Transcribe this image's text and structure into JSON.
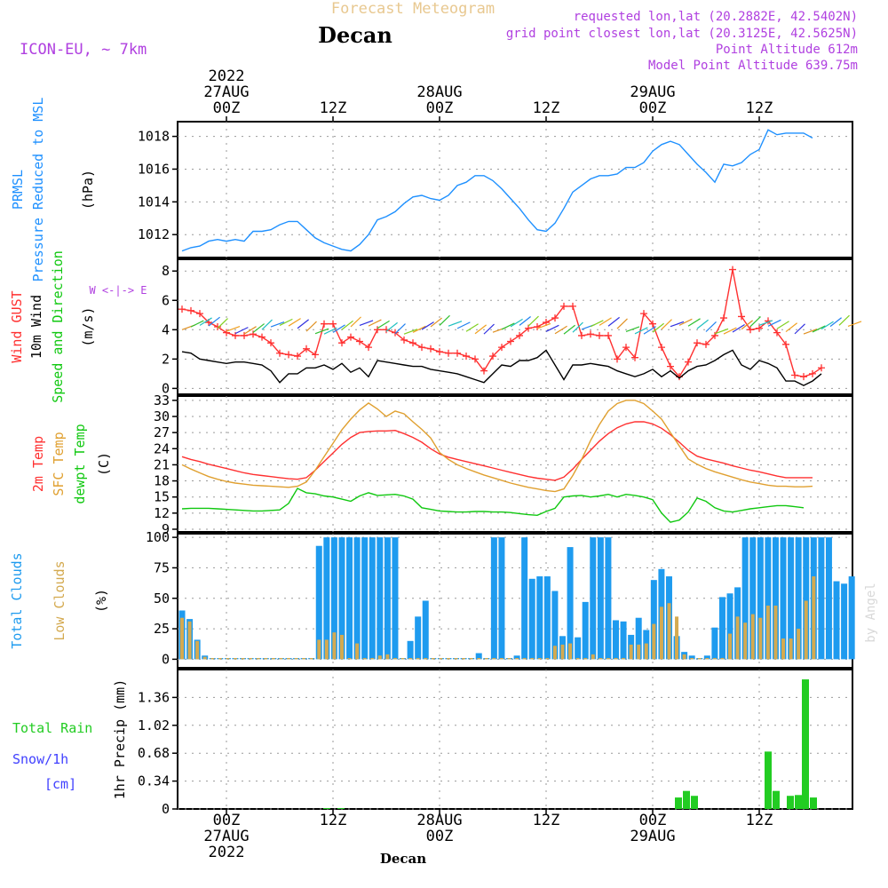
{
  "header": {
    "subtitle": "Forecast Meteogram",
    "location": "Decan",
    "model": "ICON-EU, ~ 7km",
    "requested": "requested lon,lat (20.2882E, 42.5402N)",
    "gridpoint": "grid point closest lon,lat (20.3125E, 42.5625N)",
    "point_alt": "Point Altitude 612m",
    "model_alt": "Model Point Altitude 639.75m",
    "footer": "Decan",
    "credit": "by Angel"
  },
  "colors": {
    "prmsl": "#1e90ff",
    "gust": "#ff3030",
    "wind": "#000000",
    "temp": "#ff3030",
    "sfc": "#e0a030",
    "dewpt": "#10c810",
    "total_clouds": "#1e9bef",
    "low_clouds": "#d4aa50",
    "rain": "#22cc22",
    "snow": "#4040ff",
    "purple": "#b040e0"
  },
  "time_axis": {
    "top_labels": [
      {
        "h": 0,
        "lines": [
          "2022",
          "27AUG",
          "00Z"
        ]
      },
      {
        "h": 12,
        "lines": [
          "12Z"
        ]
      },
      {
        "h": 24,
        "lines": [
          "28AUG",
          "00Z"
        ]
      },
      {
        "h": 36,
        "lines": [
          "12Z"
        ]
      },
      {
        "h": 48,
        "lines": [
          "29AUG",
          "00Z"
        ]
      },
      {
        "h": 60,
        "lines": [
          "12Z"
        ]
      }
    ],
    "bottom_labels": [
      {
        "h": 0,
        "lines": [
          "00Z",
          "27AUG",
          "2022"
        ]
      },
      {
        "h": 12,
        "lines": [
          "12Z"
        ]
      },
      {
        "h": 24,
        "lines": [
          "28AUG",
          "00Z"
        ]
      },
      {
        "h": 36,
        "lines": [
          "12Z"
        ]
      },
      {
        "h": 48,
        "lines": [
          "00Z",
          "29AUG"
        ]
      },
      {
        "h": 60,
        "lines": [
          "12Z"
        ]
      }
    ],
    "range_hours": [
      -5.5,
      70.5
    ]
  },
  "chart_data": [
    {
      "type": "line",
      "panel": "pressure",
      "ylabel_lines": [
        "PRMSL",
        "Pressure Reduced to MSL"
      ],
      "unit": "(hPa)",
      "yticks": [
        1012,
        1014,
        1016,
        1018
      ],
      "ylim": [
        1010.6,
        1018.9
      ],
      "grid": true,
      "series": [
        {
          "name": "PRMSL",
          "x_start_hour": -5,
          "values": [
            1011.0,
            1011.2,
            1011.3,
            1011.6,
            1011.7,
            1011.6,
            1011.7,
            1011.6,
            1012.2,
            1012.2,
            1012.3,
            1012.6,
            1012.8,
            1012.8,
            1012.3,
            1011.8,
            1011.5,
            1011.3,
            1011.1,
            1011.0,
            1011.4,
            1012.0,
            1012.9,
            1013.1,
            1013.4,
            1013.9,
            1014.3,
            1014.4,
            1014.2,
            1014.1,
            1014.4,
            1015.0,
            1015.2,
            1015.6,
            1015.6,
            1015.3,
            1014.8,
            1014.2,
            1013.6,
            1012.9,
            1012.3,
            1012.2,
            1012.7,
            1013.6,
            1014.6,
            1015.0,
            1015.4,
            1015.6,
            1015.6,
            1015.7,
            1016.1,
            1016.1,
            1016.4,
            1017.1,
            1017.5,
            1017.7,
            1017.5,
            1016.9,
            1016.3,
            1015.8,
            1015.2,
            1016.3,
            1016.2,
            1016.4,
            1016.9,
            1017.2,
            1018.4,
            1018.1,
            1018.2,
            1018.2,
            1018.2,
            1017.9
          ]
        }
      ]
    },
    {
      "type": "line",
      "panel": "wind",
      "ylabel_lines": [
        "Wind GUST",
        "10m Wind",
        "Speed and Direction"
      ],
      "unit": "(m/s)",
      "compass": "W <-|-> E",
      "yticks": [
        0,
        2,
        4,
        6,
        8
      ],
      "ylim": [
        -0.4,
        8.8
      ],
      "grid": true,
      "series": [
        {
          "name": "Wind GUST",
          "x_start_hour": -5,
          "values": [
            5.4,
            5.3,
            5.1,
            4.5,
            4.2,
            3.8,
            3.6,
            3.6,
            3.7,
            3.5,
            3.1,
            2.4,
            2.3,
            2.2,
            2.7,
            2.3,
            4.4,
            4.4,
            3.1,
            3.5,
            3.2,
            2.8,
            4.0,
            4.0,
            3.8,
            3.3,
            3.1,
            2.8,
            2.7,
            2.5,
            2.4,
            2.4,
            2.2,
            2.0,
            1.2,
            2.2,
            2.8,
            3.2,
            3.6,
            4.1,
            4.2,
            4.5,
            4.8,
            5.6,
            5.6,
            3.6,
            3.7,
            3.6,
            3.6,
            2.0,
            2.8,
            2.1,
            5.1,
            4.4,
            2.8,
            1.5,
            0.8,
            1.8,
            3.1,
            3.0,
            3.6,
            4.8,
            8.1,
            4.9,
            4.0,
            4.1,
            4.6,
            3.8,
            3.0,
            0.9,
            0.8,
            1.0,
            1.4
          ]
        },
        {
          "name": "10m Wind",
          "x_start_hour": -5,
          "values": [
            2.5,
            2.4,
            2.0,
            1.9,
            1.8,
            1.7,
            1.8,
            1.8,
            1.7,
            1.6,
            1.2,
            0.4,
            1.0,
            1.0,
            1.4,
            1.4,
            1.6,
            1.3,
            1.7,
            1.1,
            1.4,
            0.8,
            1.9,
            1.8,
            1.7,
            1.6,
            1.5,
            1.5,
            1.3,
            1.2,
            1.1,
            1.0,
            0.8,
            0.6,
            0.4,
            1.0,
            1.6,
            1.5,
            1.9,
            1.9,
            2.1,
            2.6,
            1.6,
            0.6,
            1.6,
            1.6,
            1.7,
            1.6,
            1.5,
            1.2,
            1.0,
            0.8,
            1.0,
            1.3,
            0.8,
            1.2,
            0.7,
            1.2,
            1.5,
            1.6,
            1.9,
            2.3,
            2.6,
            1.6,
            1.3,
            1.9,
            1.7,
            1.4,
            0.5,
            0.5,
            0.2,
            0.5,
            1.0
          ]
        }
      ]
    },
    {
      "type": "line",
      "panel": "temperature",
      "ylabel_lines": [
        "2m Temp",
        "SFC Temp",
        "dewpt Temp"
      ],
      "unit": "(C)",
      "yticks": [
        9,
        12,
        15,
        18,
        21,
        24,
        27,
        30,
        33
      ],
      "ylim": [
        8.5,
        33.8
      ],
      "grid": true,
      "series": [
        {
          "name": "2m Temp",
          "x_start_hour": -5,
          "values": [
            22.5,
            22.0,
            21.6,
            21.1,
            20.7,
            20.3,
            19.9,
            19.5,
            19.2,
            19.0,
            18.8,
            18.6,
            18.4,
            18.3,
            18.6,
            20.0,
            21.6,
            23.2,
            24.8,
            26.1,
            27.0,
            27.2,
            27.3,
            27.3,
            27.4,
            26.8,
            26.1,
            25.2,
            24.0,
            23.0,
            22.4,
            22.0,
            21.6,
            21.2,
            20.8,
            20.4,
            20.0,
            19.6,
            19.2,
            18.8,
            18.5,
            18.3,
            18.1,
            18.7,
            20.2,
            22.0,
            23.7,
            25.4,
            26.8,
            27.9,
            28.6,
            29.0,
            29.0,
            28.6,
            27.8,
            26.6,
            25.2,
            23.7,
            22.6,
            22.1,
            21.7,
            21.3,
            20.8,
            20.4,
            20.0,
            19.7,
            19.3,
            18.9,
            18.6,
            18.6,
            18.6,
            18.6
          ]
        },
        {
          "name": "SFC Temp",
          "x_start_hour": -5,
          "values": [
            21.0,
            20.2,
            19.5,
            18.8,
            18.3,
            17.9,
            17.6,
            17.4,
            17.2,
            17.1,
            17.0,
            16.9,
            16.8,
            17.0,
            17.8,
            20.0,
            22.5,
            25.0,
            27.5,
            29.5,
            31.2,
            32.5,
            31.4,
            30.0,
            31.0,
            30.5,
            29.0,
            27.6,
            26.0,
            23.3,
            22.0,
            21.0,
            20.3,
            19.7,
            19.1,
            18.6,
            18.1,
            17.6,
            17.2,
            16.8,
            16.5,
            16.2,
            16.0,
            16.5,
            19.0,
            22.0,
            25.5,
            28.5,
            31.0,
            32.4,
            33.0,
            33.0,
            32.4,
            31.0,
            29.5,
            27.0,
            24.5,
            22.1,
            21.1,
            20.3,
            19.7,
            19.2,
            18.7,
            18.2,
            17.8,
            17.5,
            17.2,
            17.0,
            17.0,
            16.9,
            16.9,
            17.0
          ]
        },
        {
          "name": "dewpt Temp",
          "x_start_hour": -5,
          "values": [
            12.8,
            12.9,
            12.9,
            12.9,
            12.8,
            12.7,
            12.6,
            12.5,
            12.4,
            12.4,
            12.5,
            12.6,
            13.8,
            16.6,
            15.8,
            15.6,
            15.2,
            15.0,
            14.6,
            14.2,
            15.2,
            15.8,
            15.3,
            15.4,
            15.5,
            15.2,
            14.6,
            13.0,
            12.7,
            12.4,
            12.3,
            12.2,
            12.2,
            12.3,
            12.3,
            12.2,
            12.2,
            12.1,
            11.9,
            11.7,
            11.6,
            12.3,
            12.9,
            15.0,
            15.2,
            15.3,
            15.0,
            15.2,
            15.5,
            15.0,
            15.5,
            15.3,
            15.0,
            14.5,
            12.0,
            10.3,
            10.7,
            12.2,
            14.8,
            14.2,
            13.0,
            12.4,
            12.2,
            12.5,
            12.8,
            13.0,
            13.2,
            13.4,
            13.4,
            13.2,
            13.0
          ]
        }
      ]
    },
    {
      "type": "bar",
      "panel": "clouds",
      "ylabel_lines": [
        "Total Clouds",
        "Low Clouds"
      ],
      "unit": "(%)",
      "yticks": [
        0,
        25,
        50,
        75,
        100
      ],
      "ylim": [
        -7,
        103
      ],
      "grid": true,
      "series": [
        {
          "name": "Total Clouds",
          "x_start_hour": -5,
          "values": [
            40,
            33,
            16,
            3,
            1,
            1,
            1,
            1,
            1,
            1,
            1,
            1,
            1,
            1,
            1,
            1,
            1,
            1,
            93,
            100,
            100,
            100,
            100,
            100,
            100,
            100,
            100,
            100,
            100,
            1,
            15,
            35,
            48,
            1,
            1,
            1,
            1,
            1,
            1,
            5,
            1,
            100,
            100,
            1,
            3,
            100,
            66,
            68,
            68,
            56,
            19,
            92,
            18,
            47,
            100,
            100,
            100,
            32,
            31,
            20,
            34,
            24,
            65,
            74,
            68,
            19,
            6,
            3,
            1,
            3,
            26,
            51,
            54,
            59,
            100,
            100,
            100,
            100,
            100,
            100,
            100,
            100,
            100,
            100,
            100,
            100,
            64,
            62,
            68
          ]
        },
        {
          "name": "Low Clouds",
          "x_start_hour": -5,
          "values": [
            34,
            31,
            15,
            2,
            1,
            1,
            1,
            1,
            1,
            1,
            1,
            1,
            1,
            1,
            1,
            1,
            1,
            1,
            16,
            16,
            22,
            20,
            1,
            13,
            1,
            1,
            3,
            4,
            1,
            1,
            1,
            1,
            1,
            1,
            1,
            1,
            1,
            1,
            1,
            1,
            1,
            1,
            1,
            1,
            1,
            1,
            1,
            1,
            1,
            11,
            12,
            13,
            1,
            1,
            4,
            1,
            1,
            1,
            1,
            12,
            12,
            13,
            29,
            43,
            46,
            35,
            4,
            1,
            1,
            1,
            1,
            1,
            21,
            35,
            30,
            37,
            34,
            44,
            44,
            17,
            17,
            25,
            48,
            68
          ]
        }
      ]
    },
    {
      "type": "bar",
      "panel": "precip",
      "ylabel_lines": [
        "1hr Precip (mm)"
      ],
      "legend_lines": [
        "Total  Rain",
        "Snow/1h",
        "[cm]"
      ],
      "yticks": [
        0,
        0.34,
        0.68,
        1.02,
        1.36
      ],
      "ylim": [
        0,
        1.7
      ],
      "grid": true,
      "series": [
        {
          "name": "Total Rain",
          "bars": [
            {
              "x": 50.9,
              "v": 0.14
            },
            {
              "x": 51.8,
              "v": 0.22
            },
            {
              "x": 52.7,
              "v": 0.16
            },
            {
              "x": 61.0,
              "v": 0.7
            },
            {
              "x": 61.9,
              "v": 0.22
            },
            {
              "x": 63.5,
              "v": 0.16
            },
            {
              "x": 64.4,
              "v": 0.17
            },
            {
              "x": 65.2,
              "v": 1.58
            },
            {
              "x": 66.1,
              "v": 0.14
            },
            {
              "x": 11.3,
              "v": 0.01
            },
            {
              "x": 12.9,
              "v": 0.01
            }
          ]
        }
      ]
    }
  ]
}
